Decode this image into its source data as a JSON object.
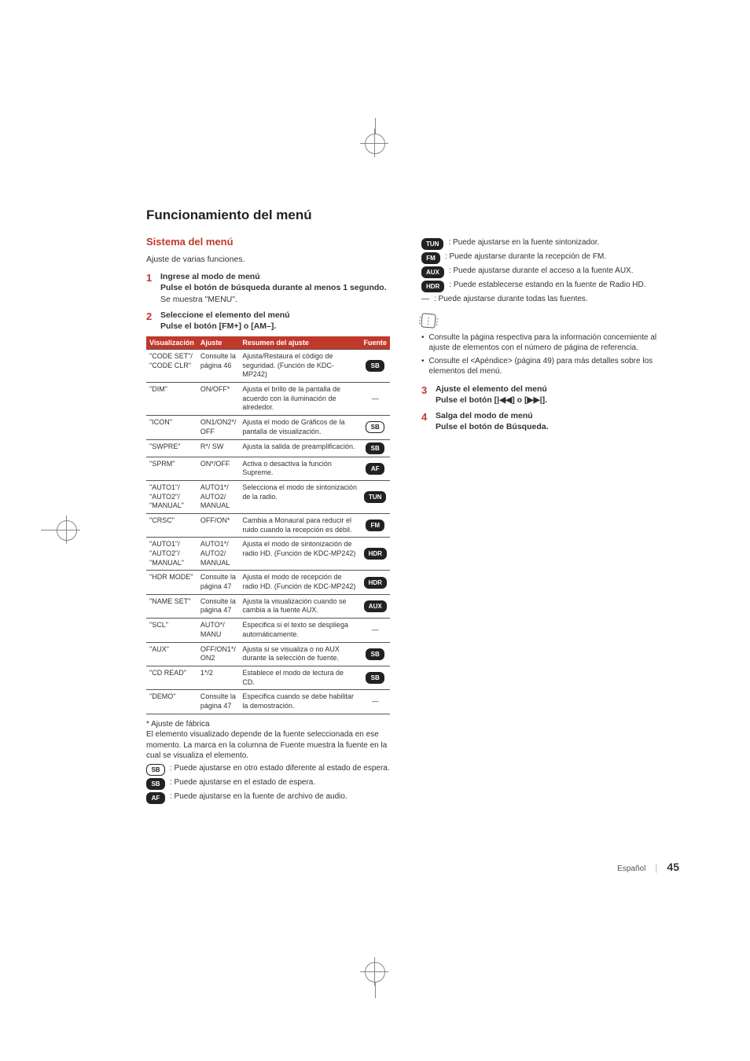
{
  "page": {
    "title": "Funcionamiento del menú",
    "section_heading": "Sistema del menú",
    "intro": "Ajuste de varias funciones.",
    "footer_lang": "Español",
    "footer_page": "45",
    "colors": {
      "accent": "#c0392b",
      "text": "#333333",
      "badge_solid_bg": "#222222",
      "badge_solid_fg": "#ffffff",
      "badge_outline_border": "#222222",
      "table_header_bg": "#c0392b",
      "table_header_fg": "#ffffff",
      "separator": "#bbbbbb"
    },
    "fonts": {
      "title_pt": 17,
      "section_pt": 13,
      "body_pt": 10.5,
      "table_pt": 9,
      "legend_pt": 10
    }
  },
  "steps": {
    "s1": {
      "num": "1",
      "title": "Ingrese al modo de menú",
      "sub": "Pulse el botón de búsqueda durante al menos 1 segundo.",
      "note": "Se muestra \"MENU\"."
    },
    "s2": {
      "num": "2",
      "title": "Seleccione el elemento del menú",
      "sub": "Pulse el botón [FM+] o [AM–]."
    },
    "s3": {
      "num": "3",
      "title": "Ajuste el elemento del menú",
      "sub": "Pulse el botón [|◀◀] o [▶▶|]."
    },
    "s4": {
      "num": "4",
      "title": "Salga del modo de menú",
      "sub": "Pulse el botón de Búsqueda."
    }
  },
  "table": {
    "headers": {
      "col1": "Visualización",
      "col2": "Ajuste",
      "col3": "Resumen del ajuste",
      "col4": "Fuente"
    },
    "rows": [
      {
        "disp": "\"CODE SET\"/ \"CODE CLR\"",
        "adj": "Consulte la página 46",
        "summary": "Ajusta/Restaura el código de seguridad. (Función de KDC-MP242)",
        "badge": "SB",
        "badge_style": "solid"
      },
      {
        "disp": "\"DIM\"",
        "adj": "ON/OFF*",
        "summary": "Ajusta el brillo de la pantalla de acuerdo con la iluminación de alrededor.",
        "badge": "—",
        "badge_style": "dash"
      },
      {
        "disp": "\"ICON\"",
        "adj": "ON1/ON2*/ OFF",
        "summary": "Ajusta el modo de Gráficos de la pantalla de visualización.",
        "badge": "SB",
        "badge_style": "outline"
      },
      {
        "disp": "\"SWPRE\"",
        "adj": "R*/ SW",
        "summary": "Ajusta la salida de preamplificación.",
        "badge": "SB",
        "badge_style": "solid"
      },
      {
        "disp": "\"SPRM\"",
        "adj": "ON*/OFF",
        "summary": "Activa o desactiva la función Supreme.",
        "badge": "AF",
        "badge_style": "solid"
      },
      {
        "disp": "\"AUTO1\"/ \"AUTO2\"/ \"MANUAL\"",
        "adj": "AUTO1*/ AUTO2/ MANUAL",
        "summary": "Selecciona el modo de sintonización de la radio.",
        "badge": "TUN",
        "badge_style": "solid"
      },
      {
        "disp": "\"CRSC\"",
        "adj": "OFF/ON*",
        "summary": "Cambia a Monaural para reducir el ruido cuando la recepción es débil.",
        "badge": "FM",
        "badge_style": "solid"
      },
      {
        "disp": "\"AUTO1\"/ \"AUTO2\"/ \"MANUAL\"",
        "adj": "AUTO1*/ AUTO2/ MANUAL",
        "summary": "Ajusta el modo de sintonización de radio HD. (Función de KDC-MP242)",
        "badge": "HDR",
        "badge_style": "solid"
      },
      {
        "disp": "\"HDR MODE\"",
        "adj": "Consulte la página 47",
        "summary": "Ajusta el modo de recepción de radio HD. (Función de KDC-MP242)",
        "badge": "HDR",
        "badge_style": "solid"
      },
      {
        "disp": "\"NAME SET\"",
        "adj": "Consulte la página 47",
        "summary": "Ajusta la visualización cuando se cambia a la fuente AUX.",
        "badge": "AUX",
        "badge_style": "solid"
      },
      {
        "disp": "\"SCL\"",
        "adj": "AUTO*/ MANU",
        "summary": "Especifica si el texto se despliega automáticamente.",
        "badge": "—",
        "badge_style": "dash"
      },
      {
        "disp": "\"AUX\"",
        "adj": "OFF/ON1*/ ON2",
        "summary": "Ajusta si se visualiza o no AUX durante la selección de fuente.",
        "badge": "SB",
        "badge_style": "solid"
      },
      {
        "disp": "\"CD READ\"",
        "adj": "1*/2",
        "summary": "Establece el modo de lectura de CD.",
        "badge": "SB",
        "badge_style": "solid"
      },
      {
        "disp": "\"DEMO\"",
        "adj": "Consulte la página 47",
        "summary": "Especifica cuando se debe habilitar la demostración.",
        "badge": "—",
        "badge_style": "dash"
      }
    ]
  },
  "table_footer": {
    "asterisk": "* Ajuste de fábrica",
    "para": "El elemento visualizado depende de la fuente seleccionada en ese momento. La marca en la columna de Fuente muestra la fuente en la cual se visualiza el elemento."
  },
  "legend_left": [
    {
      "badge": "SB",
      "style": "outline",
      "text": ": Puede ajustarse en otro estado diferente al estado de espera."
    },
    {
      "badge": "SB",
      "style": "solid",
      "text": ": Puede ajustarse en el estado de espera."
    },
    {
      "badge": "AF",
      "style": "solid",
      "text": ": Puede ajustarse en la fuente de archivo de audio."
    }
  ],
  "legend_right": [
    {
      "badge": "TUN",
      "style": "solid",
      "text": ": Puede ajustarse en la fuente sintonizador."
    },
    {
      "badge": "FM",
      "style": "solid",
      "text": ": Puede ajustarse durante la recepción de FM."
    },
    {
      "badge": "AUX",
      "style": "solid",
      "text": ": Puede ajustarse durante el acceso a la fuente AUX."
    },
    {
      "badge": "HDR",
      "style": "solid",
      "text": ": Puede establecerse estando en la fuente de Radio HD."
    },
    {
      "badge": "—",
      "style": "dash",
      "text": ": Puede ajustarse durante todas las fuentes."
    }
  ],
  "info_notes": [
    "Consulte la página respectiva para la información concerniente al ajuste de elementos con el número de página de referencia.",
    "Consulte el <Apéndice> (página 49) para más detalles sobre los elementos del menú."
  ]
}
